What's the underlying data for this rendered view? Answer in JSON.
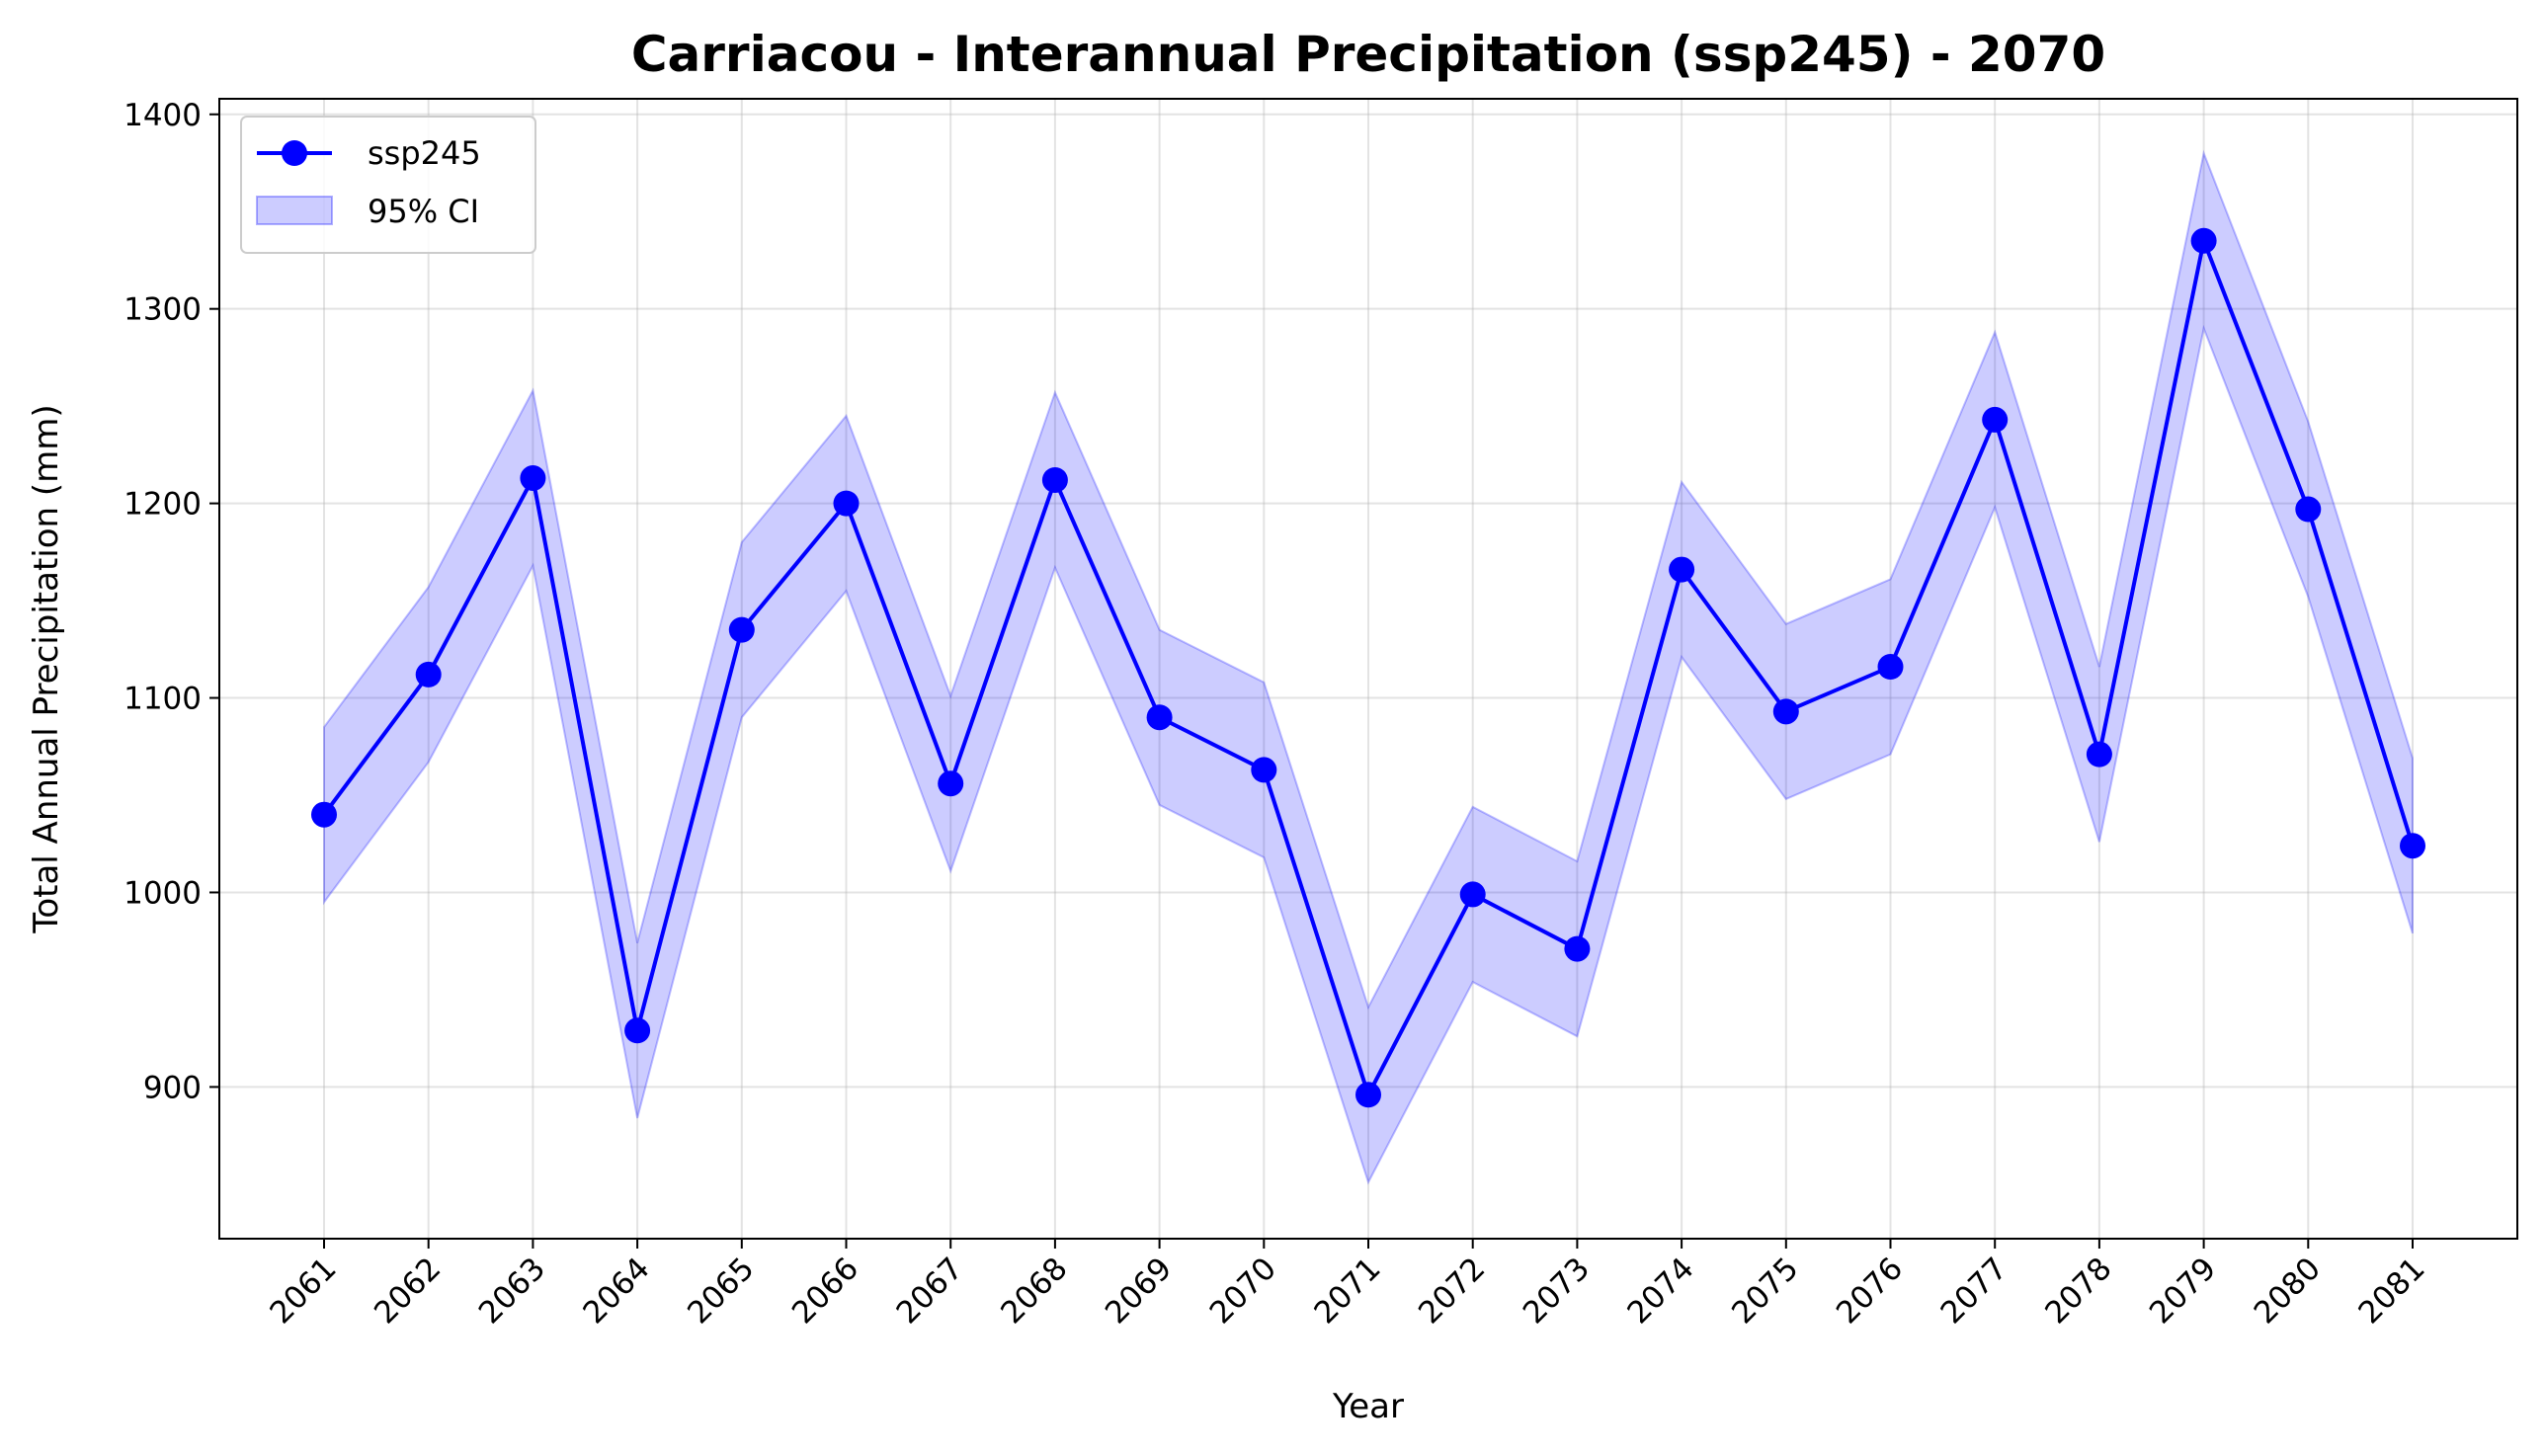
{
  "chart_data": {
    "type": "line",
    "title": "Carriacou - Interannual Precipitation (ssp245) - 2070",
    "xlabel": "Year",
    "ylabel": "Total Annual Precipitation (mm)",
    "x": [
      "2061",
      "2062",
      "2063",
      "2064",
      "2065",
      "2066",
      "2067",
      "2068",
      "2069",
      "2070",
      "2071",
      "2072",
      "2073",
      "2074",
      "2075",
      "2076",
      "2077",
      "2078",
      "2079",
      "2080",
      "2081"
    ],
    "yticks": [
      900,
      1000,
      1100,
      1200,
      1300,
      1400
    ],
    "ylim": [
      822,
      1408
    ],
    "grid": true,
    "legend_position": "upper-left",
    "series": [
      {
        "name": "ssp245",
        "color": "#0000ff",
        "values": [
          1040,
          1112,
          1213,
          929,
          1135,
          1200,
          1056,
          1212,
          1090,
          1063,
          896,
          999,
          971,
          1166,
          1093,
          1116,
          1243,
          1071,
          1335,
          1197,
          1024
        ]
      }
    ],
    "ci": {
      "name": "95% CI",
      "color": "#0000ff",
      "half_width": 45
    }
  }
}
